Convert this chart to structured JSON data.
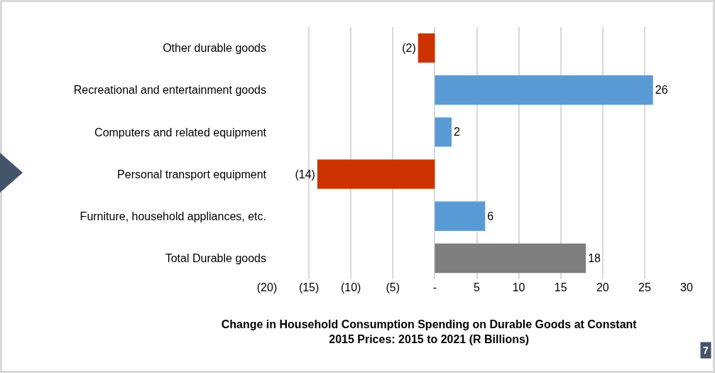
{
  "chart_data": {
    "type": "bar",
    "orientation": "horizontal",
    "title": "Change in Household Consumption Spending on Durable Goods at Constant 2015 Prices: 2015 to 2021 (R Billions)",
    "categories": [
      "Other durable goods",
      "Recreational and entertainment goods",
      "Computers and related equipment",
      "Personal transport equipment",
      "Furniture, household appliances, etc.",
      "Total Durable goods"
    ],
    "values": [
      -2,
      26,
      2,
      -14,
      6,
      18
    ],
    "colors": [
      "#cc3300",
      "#5b9bd5",
      "#5b9bd5",
      "#cc3300",
      "#5b9bd5",
      "#7f7f7f"
    ],
    "value_labels": [
      "(2)",
      "26",
      "2",
      "(14)",
      "6",
      "18"
    ],
    "xlim": [
      -20,
      30
    ],
    "xticks": [
      {
        "value": -20,
        "label": "(20)"
      },
      {
        "value": -15,
        "label": "(15)"
      },
      {
        "value": -10,
        "label": "(10)"
      },
      {
        "value": -5,
        "label": "(5)"
      },
      {
        "value": 0,
        "label": "-"
      },
      5,
      10,
      15,
      20,
      25,
      30
    ],
    "grid": "x",
    "annotations": [
      "7"
    ]
  }
}
